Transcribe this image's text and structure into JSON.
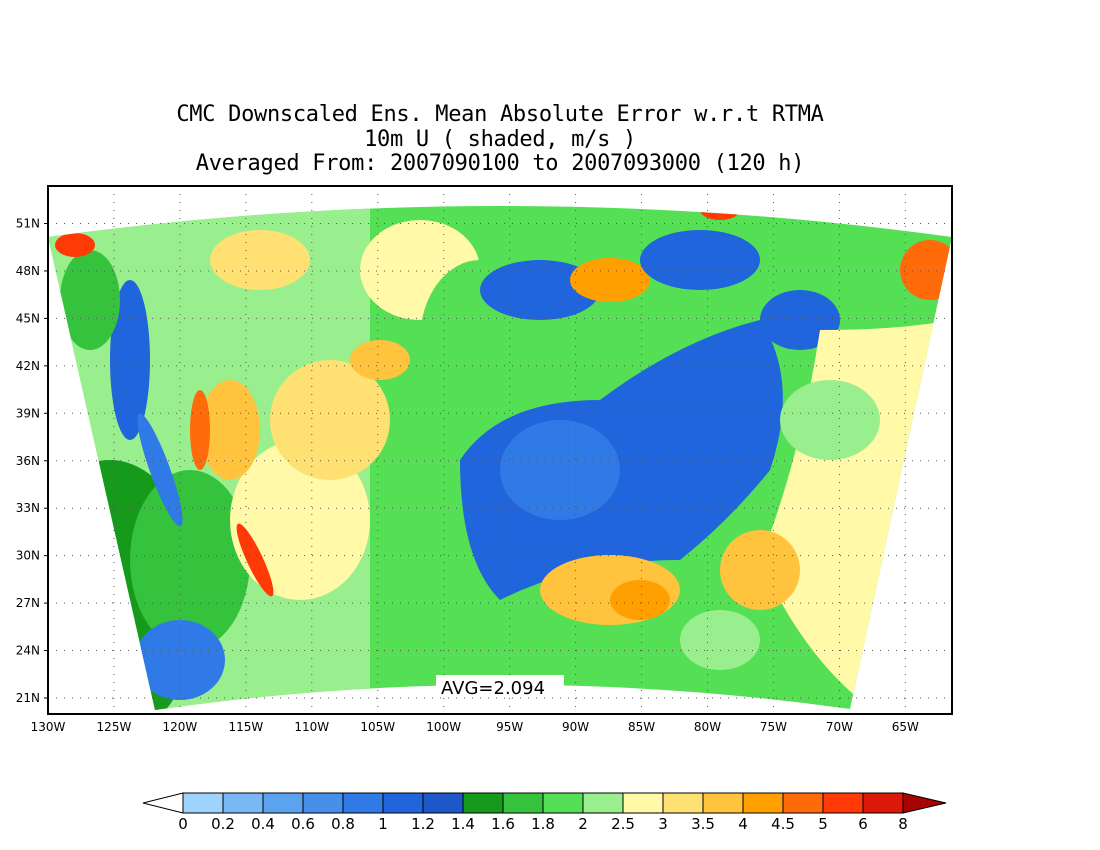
{
  "title": {
    "line1": "CMC Downscaled Ens. Mean Absolute Error w.r.t RTMA",
    "line2": "10m U ( shaded, m/s )",
    "line3": "Averaged From: 2007090100 to 2007093000 (120 h)"
  },
  "map": {
    "projection": "lambert-conic",
    "region": "CONUS",
    "lat_labels": [
      "21N",
      "24N",
      "27N",
      "30N",
      "33N",
      "36N",
      "39N",
      "42N",
      "45N",
      "48N",
      "51N"
    ],
    "lon_labels": [
      "130W",
      "125W",
      "120W",
      "115W",
      "110W",
      "105W",
      "100W",
      "95W",
      "90W",
      "85W",
      "80W",
      "75W",
      "70W",
      "65W"
    ],
    "grid": "dotted",
    "annotation": "AVG=2.094"
  },
  "colorbar": {
    "labels": [
      "0",
      "0.2",
      "0.4",
      "0.6",
      "0.8",
      "1",
      "1.2",
      "1.4",
      "1.6",
      "1.8",
      "2",
      "2.5",
      "3",
      "3.5",
      "4",
      "4.5",
      "5",
      "6",
      "8"
    ],
    "colors": [
      "#9fd3ff",
      "#7ab8f5",
      "#5ba3ef",
      "#4690ea",
      "#2f7ae6",
      "#2165dc",
      "#1e58c8",
      "#159a1b",
      "#35c23d",
      "#55df55",
      "#99ef8e",
      "#fff9a8",
      "#ffe173",
      "#ffc33d",
      "#ff9f00",
      "#ff6a0a",
      "#ff3a06",
      "#dd1808",
      "#a60303"
    ],
    "under_color": "#ffffff",
    "over_color": "#a60303"
  }
}
